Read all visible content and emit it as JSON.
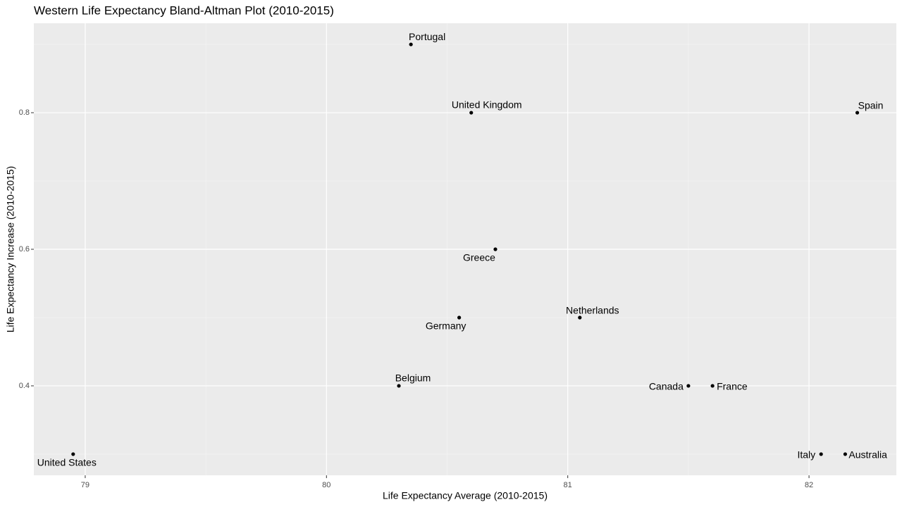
{
  "chart_data": {
    "type": "scatter",
    "title": "Western Life Expectancy Bland-Altman Plot (2010-2015)",
    "x_label": "Life Expectancy Average (2010-2015)",
    "y_label": "Life Expectancy Increase (2010-2015)",
    "x": [
      80.35,
      80.6,
      82.2,
      80.7,
      80.55,
      81.05,
      80.3,
      81.5,
      81.6,
      78.95,
      82.05,
      82.15
    ],
    "values": [
      0.9,
      0.8,
      0.8,
      0.6,
      0.5,
      0.5,
      0.4,
      0.4,
      0.4,
      0.3,
      0.3,
      0.3
    ],
    "labels": [
      "Portugal",
      "United Kingdom",
      "Spain",
      "Greece",
      "Germany",
      "Netherlands",
      "Belgium",
      "Canada",
      "France",
      "United States",
      "Italy",
      "Australia"
    ],
    "color": "#000000",
    "xlim": [
      78.787,
      82.362
    ],
    "xticks": [
      79,
      80,
      81,
      82
    ],
    "ylim": [
      0.269,
      0.931
    ],
    "yticks": [
      0.4,
      0.6,
      0.8
    ],
    "grid": true
  }
}
